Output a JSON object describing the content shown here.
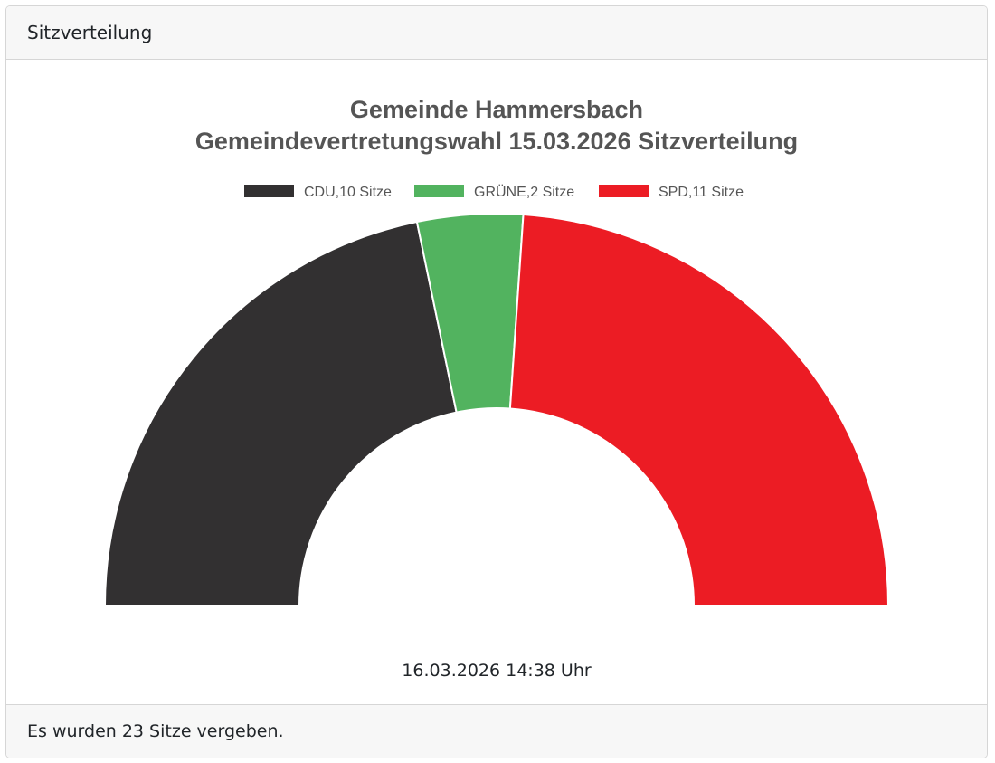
{
  "card": {
    "header_title": "Sitzverteilung",
    "footer_text": "Es wurden 23 Sitze vergeben.",
    "timestamp": "16.03.2026 14:38 Uhr"
  },
  "chart_data": {
    "type": "pie",
    "subtype": "half-doughnut",
    "title": "Gemeinde Hammersbach",
    "subtitle": "Gemeindevertretungswahl 15.03.2026 Sitzverteilung",
    "categories": [
      "CDU",
      "GRÜNE",
      "SPD"
    ],
    "values": [
      10,
      2,
      11
    ],
    "colors": [
      "#323031",
      "#52b35f",
      "#ec1c24"
    ],
    "legend": [
      "CDU,10 Sitze",
      "GRÜNE,2 Sitze",
      "SPD,11 Sitze"
    ],
    "legend_position": "top",
    "total": 23
  }
}
